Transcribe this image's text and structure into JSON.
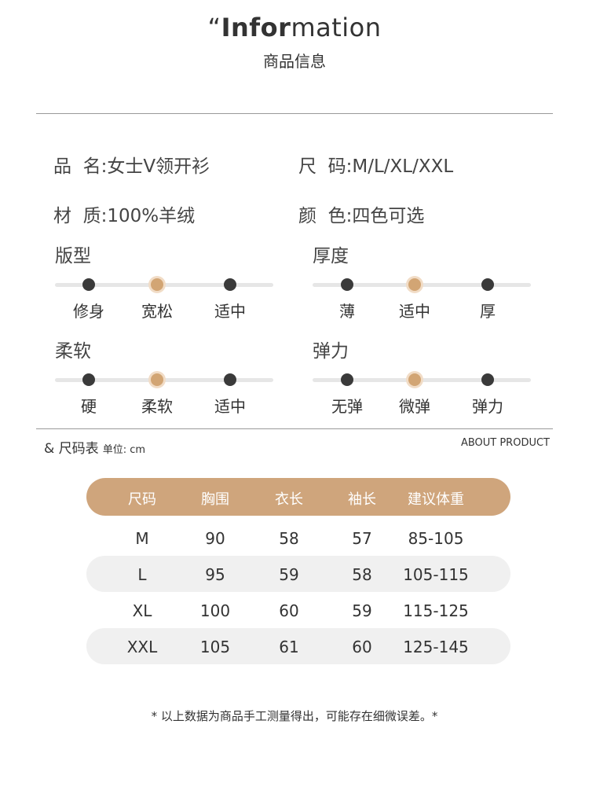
{
  "header": {
    "quote": "“",
    "title_bold": "Infor",
    "title_rest": "mation",
    "subtitle": "商品信息"
  },
  "fields": [
    {
      "label": "品  名:",
      "value": "女士V领开衫"
    },
    {
      "label": "尺  码:",
      "value": "M/L/XL/XXL"
    },
    {
      "label": "材  质:",
      "value": "100%羊绒"
    },
    {
      "label": "颜  色:",
      "value": "四色可选"
    }
  ],
  "scales": [
    {
      "title": "版型",
      "options": [
        "修身",
        "宽松",
        "适中"
      ],
      "selected": 1
    },
    {
      "title": "厚度",
      "options": [
        "薄",
        "适中",
        "厚"
      ],
      "selected": 1
    },
    {
      "title": "柔软",
      "options": [
        "硬",
        "柔软",
        "适中"
      ],
      "selected": 1
    },
    {
      "title": "弹力",
      "options": [
        "无弹",
        "微弹",
        "弹力"
      ],
      "selected": 1
    }
  ],
  "size_chart": {
    "title": "& 尺码表",
    "unit": "单位: cm",
    "about": "ABOUT PRODUCT",
    "columns": [
      "尺码",
      "胸围",
      "衣长",
      "袖长",
      "建议体重"
    ],
    "rows": [
      [
        "M",
        "90",
        "58",
        "57",
        "85-105"
      ],
      [
        "L",
        "95",
        "59",
        "58",
        "105-115"
      ],
      [
        "XL",
        "100",
        "60",
        "59",
        "115-125"
      ],
      [
        "XXL",
        "105",
        "61",
        "60",
        "125-145"
      ]
    ],
    "note": "* 以上数据为商品手工测量得出，可能存在细微误差。*"
  },
  "colors": {
    "accent": "#cfa57c",
    "dot": "#3a3a3a",
    "row_shade": "#f0f0f0"
  }
}
